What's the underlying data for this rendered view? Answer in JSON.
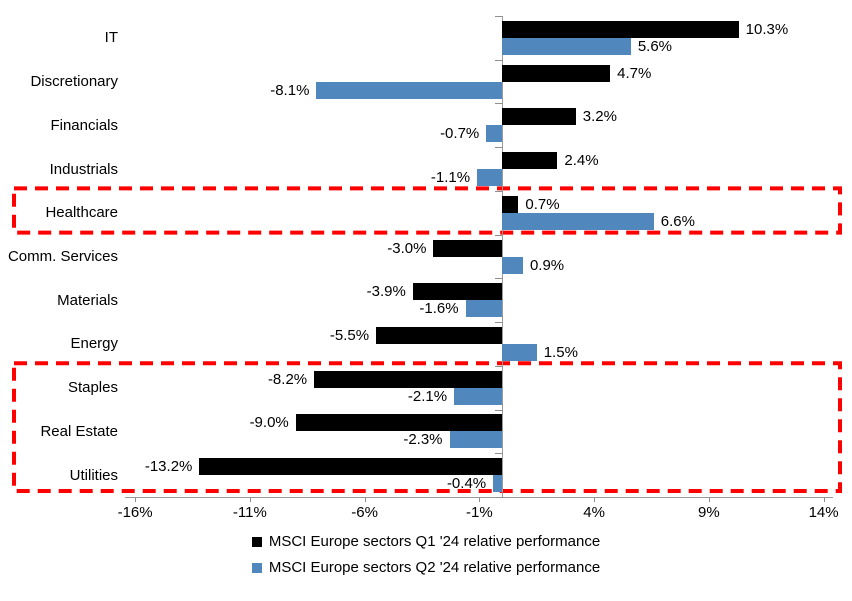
{
  "chart_data": {
    "type": "bar",
    "orientation": "horizontal",
    "title": "",
    "xlabel": "",
    "ylabel": "",
    "categories": [
      "IT",
      "Discretionary",
      "Financials",
      "Industrials",
      "Healthcare",
      "Comm. Services",
      "Materials",
      "Energy",
      "Staples",
      "Real Estate",
      "Utilities"
    ],
    "series": [
      {
        "name": "MSCI Europe sectors Q1 '24 relative performance",
        "color": "#000000",
        "values": [
          10.3,
          4.7,
          3.2,
          2.4,
          0.7,
          -3.0,
          -3.9,
          -5.5,
          -8.2,
          -9.0,
          -13.2
        ],
        "labels": [
          "10.3%",
          "4.7%",
          "3.2%",
          "2.4%",
          "0.7%",
          "-3.0%",
          "-3.9%",
          "-5.5%",
          "-8.2%",
          "-9.0%",
          "-13.2%"
        ]
      },
      {
        "name": "MSCI Europe sectors Q2 '24 relative performance",
        "color": "#5088BE",
        "values": [
          5.6,
          -8.1,
          -0.7,
          -1.1,
          6.6,
          0.9,
          -1.6,
          1.5,
          -2.1,
          -2.3,
          -0.4
        ],
        "labels": [
          "5.6%",
          "-8.1%",
          "-0.7%",
          "-1.1%",
          "6.6%",
          "0.9%",
          "-1.6%",
          "1.5%",
          "-2.1%",
          "-2.3%",
          "-0.4%"
        ]
      }
    ],
    "x_axis": {
      "tick_labels": [
        "-16%",
        "-11%",
        "-6%",
        "-1%",
        "4%",
        "9%",
        "14%"
      ],
      "tick_values": [
        -16,
        -11,
        -6,
        -1,
        4,
        9,
        14
      ],
      "xlim": [
        -18.5,
        14.5
      ],
      "grid": false
    },
    "legend": {
      "position": "bottom",
      "entries": [
        "MSCI Europe sectors Q1 '24 relative performance",
        "MSCI Europe sectors Q2 '24 relative performance"
      ]
    },
    "annotations": [
      {
        "type": "dashed-highlight-box",
        "color": "#FF0000",
        "rows": [
          "Healthcare"
        ]
      },
      {
        "type": "dashed-highlight-box",
        "color": "#FF0000",
        "rows": [
          "Staples",
          "Real Estate",
          "Utilities"
        ]
      }
    ]
  }
}
